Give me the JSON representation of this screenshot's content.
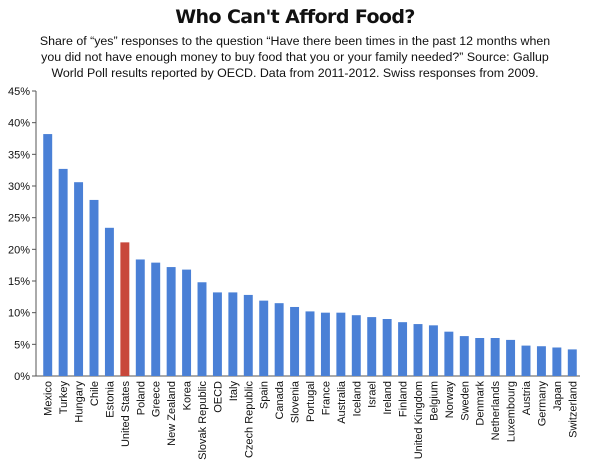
{
  "title": "Who Can't Afford Food?",
  "subtitle": "Share of “yes” responses to the question “Have there been times in the past 12 months when you did not have enough money to buy food that you or your family needed?” Source: Gallup World Poll results reported by OECD. Data from 2011-2012. Swiss responses from 2009.",
  "colors": {
    "bar": "#4a80d6",
    "highlight": "#c8473b",
    "axis": "#555555"
  },
  "chart_data": {
    "type": "bar",
    "title": "Who Can't Afford Food?",
    "xlabel": "",
    "ylabel": "",
    "ylim": [
      0,
      45
    ],
    "y_ticks": [
      "0%",
      "5%",
      "10%",
      "15%",
      "20%",
      "25%",
      "30%",
      "35%",
      "40%",
      "45%"
    ],
    "grid": false,
    "highlight": "United States",
    "categories": [
      "Mexico",
      "Turkey",
      "Hungary",
      "Chile",
      "Estonia",
      "United States",
      "Poland",
      "Greece",
      "New Zealand",
      "Korea",
      "Slovak Republic",
      "OECD",
      "Italy",
      "Czech Republic",
      "Spain",
      "Canada",
      "Slovenia",
      "Portugal",
      "France",
      "Australia",
      "Iceland",
      "Israel",
      "Ireland",
      "Finland",
      "United Kingdom",
      "Belgium",
      "Norway",
      "Sweden",
      "Denmark",
      "Netherlands",
      "Luxembourg",
      "Austria",
      "Germany",
      "Japan",
      "Switzerland"
    ],
    "values": [
      38.2,
      32.7,
      30.6,
      27.8,
      23.4,
      21.1,
      18.4,
      17.9,
      17.2,
      16.8,
      14.8,
      13.2,
      13.2,
      12.8,
      11.9,
      11.5,
      10.9,
      10.2,
      10.0,
      10.0,
      9.6,
      9.3,
      9.0,
      8.5,
      8.2,
      8.0,
      7.0,
      6.3,
      6.0,
      6.0,
      5.7,
      4.8,
      4.7,
      4.5,
      4.2
    ]
  }
}
